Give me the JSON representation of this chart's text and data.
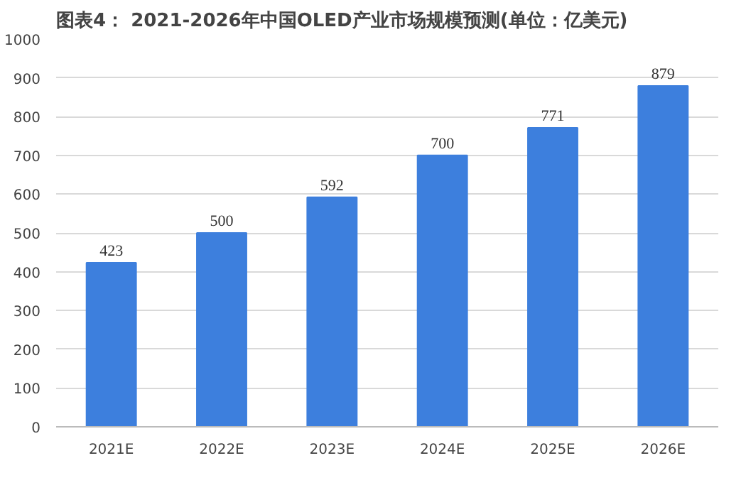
{
  "chart_data": {
    "type": "bar",
    "title": "图表4： 2021-2026年中国OLED产业市场规模预测(单位：亿美元)",
    "categories": [
      "2021E",
      "2022E",
      "2023E",
      "2024E",
      "2025E",
      "2026E"
    ],
    "values": [
      423,
      500,
      592,
      700,
      771,
      879
    ],
    "color": "#3d7fdd",
    "ylim": [
      0,
      1000
    ],
    "yticks": [
      0,
      100,
      200,
      300,
      400,
      500,
      600,
      700,
      800,
      900,
      1000
    ],
    "grid": "y",
    "data_labels": true
  }
}
